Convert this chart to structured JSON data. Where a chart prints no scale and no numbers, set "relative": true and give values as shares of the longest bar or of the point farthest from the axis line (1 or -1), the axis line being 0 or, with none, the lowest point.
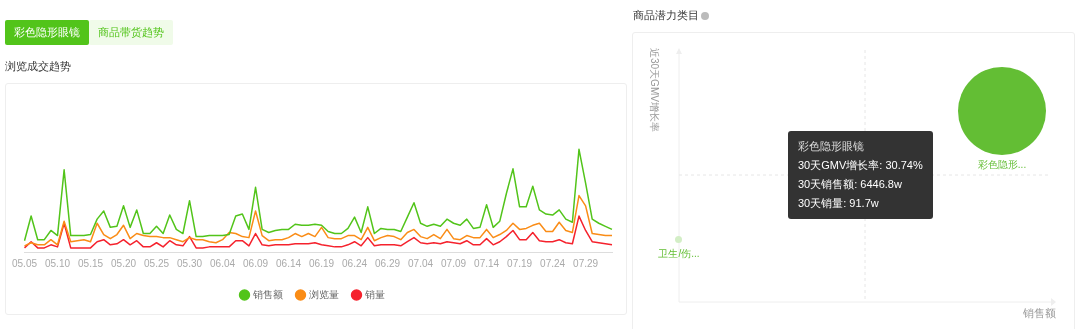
{
  "chart_data": [
    {
      "type": "line",
      "title": "浏览成交趋势",
      "annotations": [
        "彩色隐形眼镜",
        "商品带货趋势"
      ],
      "relative": true,
      "legend": "bottom",
      "marker": "none",
      "categories": [
        "05.05",
        null,
        null,
        null,
        null,
        "05.10",
        null,
        null,
        null,
        null,
        "05.15",
        null,
        null,
        null,
        null,
        "05.20",
        null,
        null,
        null,
        null,
        "05.25",
        null,
        null,
        null,
        null,
        "05.30",
        null,
        null,
        null,
        null,
        "06.04",
        null,
        null,
        null,
        null,
        "06.09",
        null,
        null,
        null,
        null,
        "06.14",
        null,
        null,
        null,
        null,
        "06.19",
        null,
        null,
        null,
        null,
        "06.24",
        null,
        null,
        null,
        null,
        "06.29",
        null,
        null,
        null,
        null,
        "07.04",
        null,
        null,
        null,
        null,
        "07.09",
        null,
        null,
        null,
        null,
        "07.14",
        null,
        null,
        null,
        null,
        "07.19",
        null,
        null,
        null,
        null,
        "07.24",
        null,
        null,
        null,
        null,
        "07.29",
        null,
        null,
        null,
        null
      ],
      "series": [
        {
          "name": "销售额",
          "color": "#52c41a",
          "values": [
            0.11,
            0.35,
            0.12,
            0.12,
            0.21,
            0.16,
            0.8,
            0.16,
            0.16,
            0.16,
            0.17,
            0.32,
            0.4,
            0.24,
            0.25,
            0.45,
            0.24,
            0.41,
            0.18,
            0.18,
            0.25,
            0.18,
            0.36,
            0.22,
            0.18,
            0.5,
            0.15,
            0.15,
            0.16,
            0.16,
            0.16,
            0.17,
            0.35,
            0.37,
            0.22,
            0.63,
            0.22,
            0.19,
            0.21,
            0.22,
            0.22,
            0.27,
            0.26,
            0.26,
            0.27,
            0.26,
            0.2,
            0.18,
            0.18,
            0.23,
            0.34,
            0.19,
            0.44,
            0.18,
            0.23,
            0.22,
            0.22,
            0.2,
            0.34,
            0.48,
            0.28,
            0.25,
            0.27,
            0.25,
            0.32,
            0.28,
            0.26,
            0.32,
            0.23,
            0.24,
            0.46,
            0.24,
            0.3,
            0.57,
            0.81,
            0.44,
            0.44,
            0.64,
            0.41,
            0.37,
            0.36,
            0.41,
            0.32,
            0.29,
            1,
            0.67,
            0.32,
            0.28,
            0.25,
            0.22
          ]
        },
        {
          "name": "浏览量",
          "color": "#fa8c16",
          "values": [
            0.06,
            0.09,
            0.07,
            0.07,
            0.12,
            0.07,
            0.3,
            0.1,
            0.11,
            0.12,
            0.1,
            0.28,
            0.17,
            0.13,
            0.17,
            0.26,
            0.13,
            0.18,
            0.16,
            0.15,
            0.15,
            0.14,
            0.14,
            0.12,
            0.1,
            0.14,
            0.12,
            0.12,
            0.1,
            0.09,
            0.12,
            0.19,
            0.18,
            0.15,
            0.14,
            0.4,
            0.16,
            0.11,
            0.12,
            0.12,
            0.14,
            0.18,
            0.15,
            0.18,
            0.15,
            0.24,
            0.14,
            0.13,
            0.13,
            0.16,
            0.16,
            0.12,
            0.24,
            0.11,
            0.14,
            0.16,
            0.15,
            0.12,
            0.19,
            0.22,
            0.15,
            0.13,
            0.17,
            0.13,
            0.22,
            0.13,
            0.12,
            0.16,
            0.14,
            0.14,
            0.22,
            0.14,
            0.17,
            0.21,
            0.28,
            0.22,
            0.23,
            0.26,
            0.28,
            0.2,
            0.2,
            0.29,
            0.21,
            0.19,
            0.55,
            0.45,
            0.18,
            0.17,
            0.16,
            0.16
          ]
        },
        {
          "name": "销量",
          "color": "#f5222d",
          "values": [
            0.04,
            0.1,
            0.04,
            0.04,
            0.07,
            0.05,
            0.28,
            0.04,
            0.04,
            0.04,
            0.04,
            0.1,
            0.12,
            0.07,
            0.08,
            0.12,
            0.07,
            0.11,
            0.05,
            0.05,
            0.09,
            0.05,
            0.11,
            0.07,
            0.06,
            0.15,
            0.04,
            0.04,
            0.05,
            0.05,
            0.05,
            0.05,
            0.11,
            0.11,
            0.06,
            0.18,
            0.07,
            0.06,
            0.07,
            0.07,
            0.07,
            0.08,
            0.08,
            0.08,
            0.09,
            0.07,
            0.06,
            0.05,
            0.05,
            0.07,
            0.1,
            0.06,
            0.14,
            0.06,
            0.07,
            0.07,
            0.07,
            0.06,
            0.1,
            0.14,
            0.09,
            0.08,
            0.09,
            0.08,
            0.1,
            0.09,
            0.08,
            0.11,
            0.07,
            0.07,
            0.13,
            0.07,
            0.1,
            0.15,
            0.21,
            0.12,
            0.12,
            0.19,
            0.11,
            0.1,
            0.1,
            0.12,
            0.09,
            0.08,
            0.35,
            0.21,
            0.1,
            0.09,
            0.08,
            0.07
          ]
        }
      ]
    },
    {
      "type": "other",
      "title": "商品潜力类目",
      "xlabel": "销售额",
      "ylabel": "近30天GMV增长率",
      "annotations": [
        "彩色隐形眼镜",
        "30天GMV增长率: 30.74%",
        "30天销售额: 6446.8w",
        "30天销量: 91.7w",
        "彩色隐形...",
        "卫生/伤..."
      ]
    }
  ]
}
